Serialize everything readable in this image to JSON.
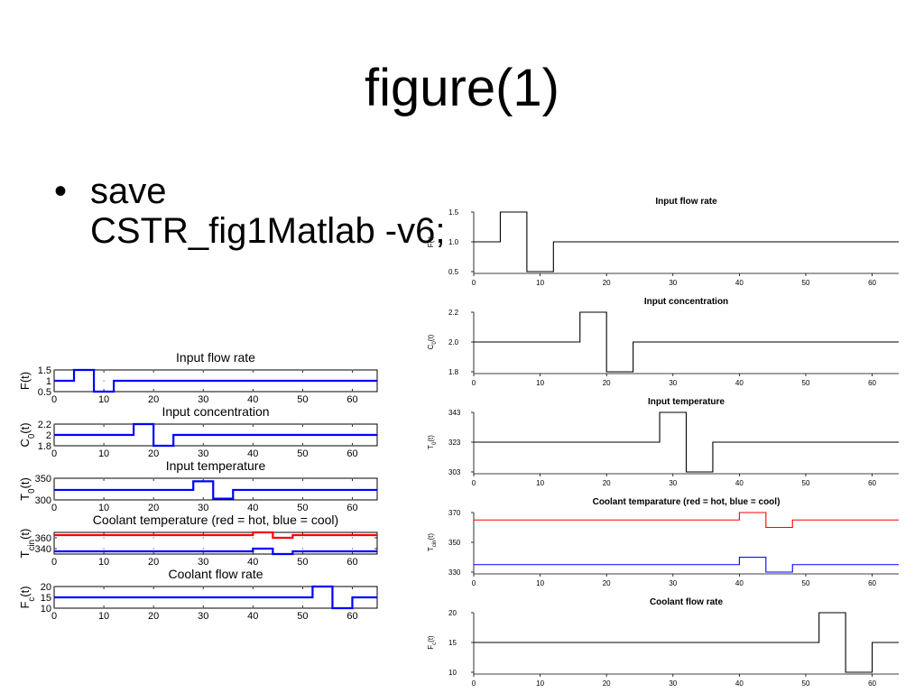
{
  "slide": {
    "title": "figure(1)",
    "bullet_lines": [
      "save",
      "CSTR_fig1Matlab -v6;"
    ]
  },
  "chart_data": [
    {
      "type": "line",
      "title": "Input flow rate",
      "ylabel": "F(t)",
      "xlim": [
        0,
        65
      ],
      "ylim": [
        0.5,
        1.5
      ],
      "xticks": [
        0,
        10,
        20,
        30,
        40,
        50,
        60
      ],
      "yticks": [
        "0.5",
        "1",
        "1.5"
      ],
      "series": [
        {
          "color": "#0000ff",
          "x": [
            0,
            4,
            4,
            8,
            8,
            12,
            12,
            65
          ],
          "y": [
            1,
            1,
            1.5,
            1.5,
            0.5,
            0.5,
            1,
            1
          ]
        }
      ]
    },
    {
      "type": "line",
      "title": "Input concentration",
      "ylabel": "C_0(t)",
      "xlim": [
        0,
        65
      ],
      "ylim": [
        1.8,
        2.2
      ],
      "xticks": [
        0,
        10,
        20,
        30,
        40,
        50,
        60
      ],
      "yticks": [
        "1.8",
        "2",
        "2.2"
      ],
      "series": [
        {
          "color": "#0000ff",
          "x": [
            0,
            16,
            16,
            20,
            20,
            24,
            24,
            65
          ],
          "y": [
            2,
            2,
            2.2,
            2.2,
            1.8,
            1.8,
            2,
            2
          ]
        }
      ]
    },
    {
      "type": "line",
      "title": "Input temperature",
      "ylabel": "T_0(t)",
      "xlim": [
        0,
        65
      ],
      "ylim": [
        300,
        350
      ],
      "xticks": [
        0,
        10,
        20,
        30,
        40,
        50,
        60
      ],
      "yticks": [
        "300",
        "350"
      ],
      "series": [
        {
          "color": "#0000ff",
          "x": [
            0,
            28,
            28,
            32,
            32,
            36,
            36,
            65
          ],
          "y": [
            323,
            323,
            343,
            343,
            303,
            303,
            323,
            323
          ]
        }
      ]
    },
    {
      "type": "line",
      "title": "Coolant temperature (red = hot, blue = cool)",
      "ylabel": "T_cin(t)",
      "xlim": [
        0,
        65
      ],
      "ylim": [
        330,
        370
      ],
      "xticks": [
        0,
        10,
        20,
        30,
        40,
        50,
        60
      ],
      "yticks": [
        "340",
        "360"
      ],
      "series": [
        {
          "color": "#ff0000",
          "x": [
            0,
            40,
            40,
            44,
            44,
            48,
            48,
            65
          ],
          "y": [
            365,
            365,
            370,
            370,
            360,
            360,
            365,
            365
          ]
        },
        {
          "color": "#0000ff",
          "x": [
            0,
            40,
            40,
            44,
            44,
            48,
            48,
            65
          ],
          "y": [
            335,
            335,
            340,
            340,
            330,
            330,
            335,
            335
          ]
        }
      ]
    },
    {
      "type": "line",
      "title": "Coolant flow rate",
      "ylabel": "F_c(t)",
      "xlim": [
        0,
        65
      ],
      "ylim": [
        10,
        20
      ],
      "xticks": [
        0,
        10,
        20,
        30,
        40,
        50,
        60
      ],
      "yticks": [
        "10",
        "15",
        "20"
      ],
      "series": [
        {
          "color": "#0000ff",
          "x": [
            0,
            52,
            52,
            56,
            56,
            60,
            60,
            65
          ],
          "y": [
            15,
            15,
            20,
            20,
            10,
            10,
            15,
            15
          ]
        }
      ]
    },
    {
      "type": "line",
      "title": "Input flow rate",
      "ylabel": "F(t)",
      "xlim": [
        0,
        64
      ],
      "ylim": [
        0.5,
        1.5
      ],
      "xticks": [
        0,
        10,
        20,
        30,
        40,
        50,
        60
      ],
      "yticks": [
        "0.5",
        "1.0",
        "1.5"
      ],
      "series": [
        {
          "color": "#000000",
          "x": [
            0,
            4,
            4,
            8,
            8,
            12,
            12,
            64
          ],
          "y": [
            1,
            1,
            1.5,
            1.5,
            0.5,
            0.5,
            1,
            1
          ]
        }
      ]
    },
    {
      "type": "line",
      "title": "Input concentration",
      "ylabel": "C_0(t)",
      "xlim": [
        0,
        64
      ],
      "ylim": [
        1.8,
        2.2
      ],
      "xticks": [
        0,
        10,
        20,
        30,
        40,
        50,
        60
      ],
      "yticks": [
        "1.8",
        "2.0",
        "2.2"
      ],
      "series": [
        {
          "color": "#000000",
          "x": [
            0,
            16,
            16,
            20,
            20,
            24,
            24,
            64
          ],
          "y": [
            2,
            2,
            2.2,
            2.2,
            1.8,
            1.8,
            2,
            2
          ]
        }
      ]
    },
    {
      "type": "line",
      "title": "Input temperature",
      "ylabel": "T_0(t)",
      "xlim": [
        0,
        64
      ],
      "ylim": [
        303,
        343
      ],
      "xticks": [
        0,
        10,
        20,
        30,
        40,
        50,
        60
      ],
      "yticks": [
        "303",
        "323",
        "343"
      ],
      "series": [
        {
          "color": "#000000",
          "x": [
            0,
            28,
            28,
            32,
            32,
            36,
            36,
            64
          ],
          "y": [
            323,
            323,
            343,
            343,
            303,
            303,
            323,
            323
          ]
        }
      ]
    },
    {
      "type": "line",
      "title": "Coolant temparature (red = hot, blue = cool)",
      "ylabel": "T_cin(t)",
      "xlim": [
        0,
        64
      ],
      "ylim": [
        330,
        370
      ],
      "xticks": [
        0,
        10,
        20,
        30,
        40,
        50,
        60
      ],
      "yticks": [
        "330",
        "350",
        "370"
      ],
      "series": [
        {
          "color": "#ff0000",
          "x": [
            0,
            40,
            40,
            44,
            44,
            48,
            48,
            64
          ],
          "y": [
            365,
            365,
            370,
            370,
            360,
            360,
            365,
            365
          ]
        },
        {
          "color": "#0000ff",
          "x": [
            0,
            40,
            40,
            44,
            44,
            48,
            48,
            64
          ],
          "y": [
            335,
            335,
            340,
            340,
            330,
            330,
            335,
            335
          ]
        }
      ]
    },
    {
      "type": "line",
      "title": "Coolant flow rate",
      "ylabel": "F_c(t)",
      "xlim": [
        0,
        64
      ],
      "ylim": [
        10,
        20
      ],
      "xticks": [
        0,
        10,
        20,
        30,
        40,
        50,
        60
      ],
      "yticks": [
        "10",
        "15",
        "20"
      ],
      "series": [
        {
          "color": "#000000",
          "x": [
            0,
            52,
            52,
            56,
            56,
            60,
            60,
            64
          ],
          "y": [
            15,
            15,
            20,
            20,
            10,
            10,
            15,
            15
          ]
        }
      ]
    }
  ]
}
